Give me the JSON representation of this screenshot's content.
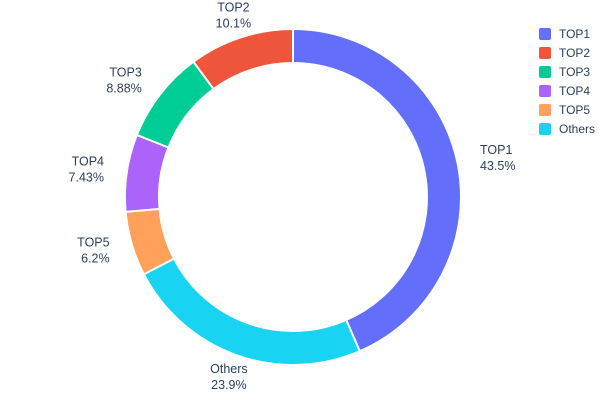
{
  "chart_data": {
    "type": "pie",
    "subtype": "donut",
    "hole": 0.8,
    "title": "",
    "labels": [
      "TOP1",
      "TOP2",
      "TOP3",
      "TOP4",
      "TOP5",
      "Others"
    ],
    "values": [
      43.5,
      10.1,
      8.88,
      7.43,
      6.2,
      23.9
    ],
    "percent_labels": [
      "43.5%",
      "10.1%",
      "8.88%",
      "7.43%",
      "6.2%",
      "23.9%"
    ],
    "colors": [
      "#636EFA",
      "#EF553B",
      "#00CC96",
      "#AB63FA",
      "#FFA15A",
      "#19D3F3"
    ],
    "clockwise_order_from_top": [
      "TOP1",
      "Others",
      "TOP5",
      "TOP4",
      "TOP3",
      "TOP2"
    ],
    "slice_outline_color": "#ffffff",
    "text_color": "#2a3f5f",
    "background": "#ffffff",
    "legend": {
      "position": "top-right",
      "entries": [
        "TOP1",
        "TOP2",
        "TOP3",
        "TOP4",
        "TOP5",
        "Others"
      ]
    }
  }
}
